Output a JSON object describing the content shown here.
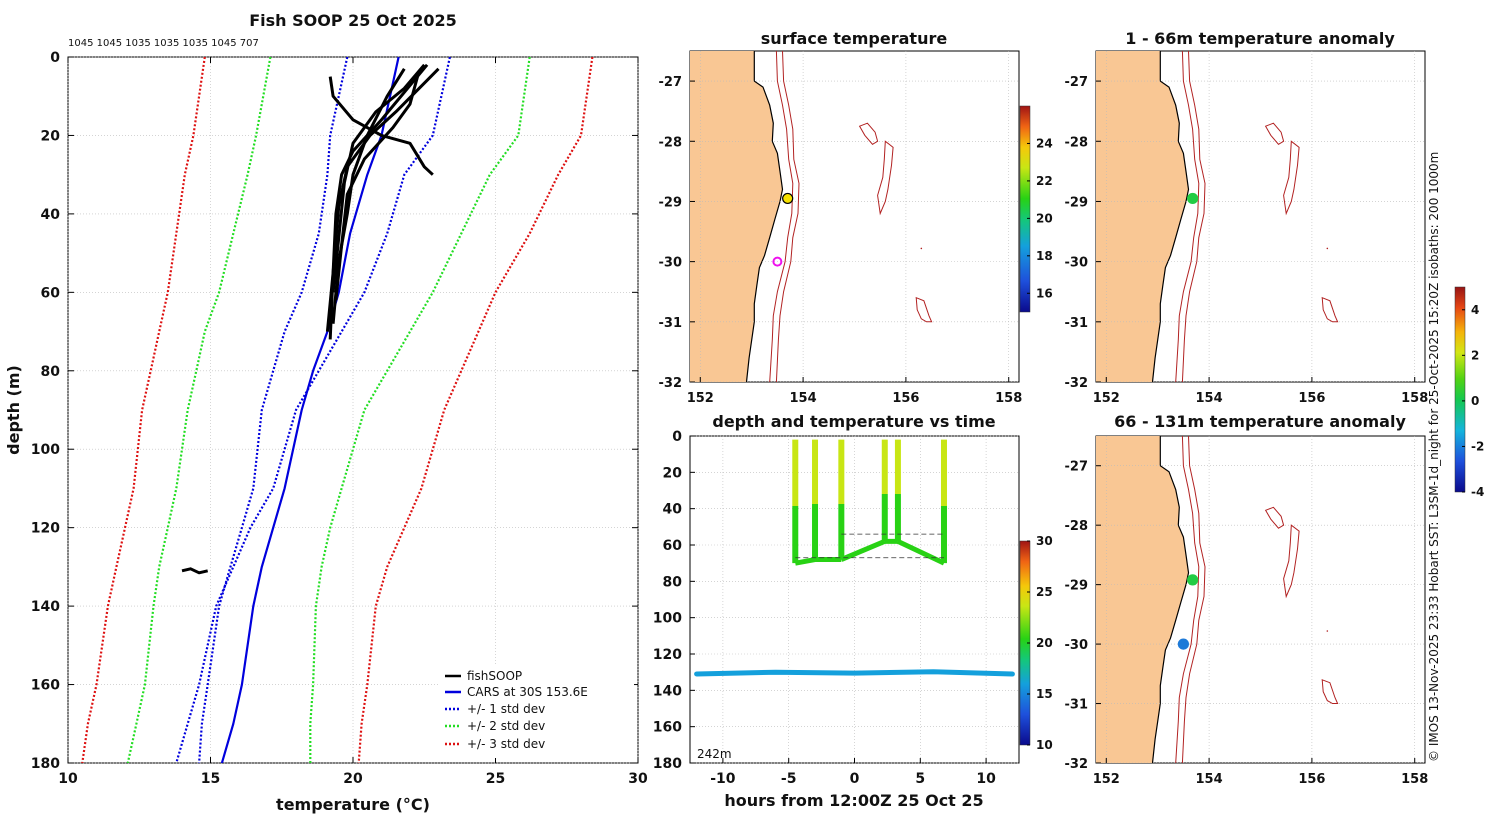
{
  "figure": {
    "title": "Fish SOOP 25 Oct 2025",
    "drop_depths": "1045 1045 1035 1035 1035 1045 707",
    "credit": "© IMOS 13-Nov-2025 23:33 Hobart SST: L3SM-1d_night for 25-Oct-2025 15:20Z isobaths: 200  1000m"
  },
  "colors": {
    "land": "#f9c794",
    "isobath": "#b22222",
    "fishsoop": "#000000",
    "cars": "#0000dd",
    "sd1": "#0000dd",
    "sd2": "#22dd22",
    "sd3": "#dd1111"
  },
  "chart_data": [
    {
      "id": "profile",
      "type": "line",
      "title": "Fish SOOP 25 Oct 2025",
      "xlabel": "temperature (°C)",
      "ylabel": "depth (m)",
      "xlim": [
        10,
        30
      ],
      "ylim": [
        0,
        180
      ],
      "xticks": [
        10,
        15,
        20,
        25,
        30
      ],
      "yticks": [
        0,
        20,
        40,
        60,
        80,
        100,
        120,
        140,
        160,
        180
      ],
      "grid": true,
      "legend_position": "bottom-right",
      "series": [
        {
          "name": "CARS at 30S 153.6E",
          "style": "cars",
          "x": [
            21.6,
            21.0,
            20.5,
            19.9,
            19.5,
            19.1,
            18.6,
            18.2,
            17.6,
            17.2,
            16.8,
            16.5,
            16.1,
            15.8,
            15.4
          ],
          "depth": [
            0,
            20,
            30,
            45,
            60,
            70,
            80,
            90,
            110,
            120,
            130,
            140,
            160,
            170,
            180
          ]
        },
        {
          "name": "+/- 1 std dev",
          "style": "sd1",
          "x": [
            23.4,
            22.8,
            21.8,
            21.2,
            20.4,
            19.6,
            18.8,
            18.0,
            17.2,
            16.4,
            15.8,
            15.2,
            14.6,
            14.2,
            13.8
          ],
          "depth": [
            0,
            20,
            30,
            45,
            60,
            70,
            80,
            90,
            110,
            120,
            130,
            140,
            160,
            170,
            180
          ]
        },
        {
          "name": "",
          "style": "sd1",
          "x": [
            19.8,
            19.2,
            19.1,
            18.8,
            18.2,
            17.6,
            17.2,
            16.8,
            16.5,
            16.1,
            15.7,
            15.3,
            14.9,
            14.7,
            14.6
          ],
          "depth": [
            0,
            20,
            30,
            45,
            60,
            70,
            80,
            90,
            110,
            120,
            130,
            140,
            160,
            170,
            180
          ]
        },
        {
          "name": "+/- 2 std dev",
          "style": "sd2",
          "x": [
            26.2,
            25.8,
            24.8,
            23.8,
            22.8,
            22.0,
            21.2,
            20.4,
            19.6,
            19.2,
            18.9,
            18.7,
            18.6,
            18.5,
            18.5
          ],
          "depth": [
            0,
            20,
            30,
            45,
            60,
            70,
            80,
            90,
            110,
            120,
            130,
            140,
            160,
            170,
            180
          ]
        },
        {
          "name": "",
          "style": "sd2",
          "x": [
            17.1,
            16.6,
            16.3,
            15.8,
            15.3,
            14.8,
            14.5,
            14.2,
            13.8,
            13.5,
            13.2,
            13.0,
            12.7,
            12.4,
            12.1
          ],
          "depth": [
            0,
            20,
            30,
            45,
            60,
            70,
            80,
            90,
            110,
            120,
            130,
            140,
            160,
            170,
            180
          ]
        },
        {
          "name": "+/- 3 std dev",
          "style": "sd3",
          "x": [
            28.4,
            28.0,
            27.2,
            26.2,
            25.0,
            24.4,
            23.8,
            23.2,
            22.4,
            21.8,
            21.2,
            20.8,
            20.5,
            20.3,
            20.2
          ],
          "depth": [
            0,
            20,
            30,
            45,
            60,
            70,
            80,
            90,
            110,
            120,
            130,
            140,
            160,
            170,
            180
          ]
        },
        {
          "name": "",
          "style": "sd3",
          "x": [
            14.8,
            14.4,
            14.1,
            13.8,
            13.5,
            13.2,
            12.9,
            12.6,
            12.3,
            12.0,
            11.7,
            11.4,
            11.0,
            10.7,
            10.5
          ],
          "depth": [
            0,
            20,
            30,
            45,
            60,
            70,
            80,
            90,
            110,
            120,
            130,
            140,
            160,
            170,
            180
          ]
        },
        {
          "name": "fishSOOP",
          "style": "fishsoop",
          "x": [
            22.6,
            21.0,
            20.0,
            19.6,
            19.4,
            19.3,
            19.2
          ],
          "depth": [
            2,
            16,
            24,
            30,
            40,
            55,
            72
          ]
        },
        {
          "name": "",
          "style": "fishsoop",
          "x": [
            23.0,
            21.5,
            20.6,
            19.8,
            19.5,
            19.3,
            19.1
          ],
          "depth": [
            3,
            14,
            20,
            28,
            38,
            55,
            70
          ]
        },
        {
          "name": "",
          "style": "fishsoop",
          "x": [
            22.3,
            22.0,
            21.4,
            20.4,
            19.8,
            19.6,
            19.4
          ],
          "depth": [
            4,
            12,
            18,
            26,
            35,
            48,
            62
          ]
        },
        {
          "name": "",
          "style": "fishsoop",
          "x": [
            19.2,
            19.3,
            20.0,
            21.0,
            22.0,
            22.5,
            22.8
          ],
          "depth": [
            5,
            10,
            16,
            20,
            22,
            28,
            30
          ]
        },
        {
          "name": "",
          "style": "fishsoop",
          "x": [
            22.5,
            21.8,
            20.8,
            20.0,
            19.7,
            19.5,
            19.3
          ],
          "depth": [
            2,
            8,
            14,
            22,
            32,
            46,
            60
          ]
        },
        {
          "name": "",
          "style": "fishsoop",
          "x": [
            21.8,
            21.2,
            20.5,
            20.0,
            19.8,
            19.5,
            19.3
          ],
          "depth": [
            3,
            10,
            20,
            30,
            40,
            52,
            68
          ]
        },
        {
          "name": "",
          "style": "fishsoop",
          "x": [
            14.0,
            14.3,
            14.6,
            14.9
          ],
          "depth": [
            131,
            130.5,
            131.5,
            131
          ]
        }
      ]
    },
    {
      "id": "timeseries",
      "type": "scatter",
      "title": "depth and temperature vs time",
      "xlabel": "hours from 12:00Z 25 Oct 25",
      "ylabel": "",
      "xlim": [
        -12.5,
        12.5
      ],
      "ylim": [
        0,
        180
      ],
      "xticks": [
        -10,
        -5,
        0,
        5,
        10
      ],
      "yticks": [
        0,
        20,
        40,
        60,
        80,
        100,
        120,
        140,
        160,
        180
      ],
      "annotation": "242m",
      "grid": true,
      "deep_trace": {
        "x": [
          -12,
          -6,
          0,
          6,
          12
        ],
        "depth": [
          131,
          130,
          130.5,
          129.8,
          131
        ],
        "temperature": 15
      },
      "shallow_casts": [
        {
          "x": -4.5,
          "bottom": 70,
          "temperature_top": 24,
          "temperature_bottom": 20
        },
        {
          "x": -3,
          "bottom": 68,
          "temperature_top": 24,
          "temperature_bottom": 20
        },
        {
          "x": -1,
          "bottom": 68,
          "temperature_top": 24,
          "temperature_bottom": 20
        },
        {
          "x": 2.3,
          "bottom": 58,
          "temperature_top": 23,
          "temperature_bottom": 20
        },
        {
          "x": 3.3,
          "bottom": 58,
          "temperature_top": 23,
          "temperature_bottom": 20
        },
        {
          "x": 6.8,
          "bottom": 70,
          "temperature_top": 23,
          "temperature_bottom": 20
        }
      ],
      "colorbar": {
        "min": 10,
        "max": 30,
        "ticks": [
          10,
          15,
          20,
          25,
          30
        ]
      }
    },
    {
      "id": "map_surface",
      "type": "scatter",
      "title": "surface temperature",
      "xlim": [
        151.8,
        158.2
      ],
      "ylim": [
        -32,
        -26.5
      ],
      "xticks": [
        152,
        154,
        156,
        158
      ],
      "yticks": [
        -27,
        -28,
        -29,
        -30,
        -31,
        -32
      ],
      "markers": [
        {
          "lon": 153.7,
          "lat": -28.95,
          "color": "#f6e100",
          "outline": "#000000"
        },
        {
          "lon": 153.5,
          "lat": -30.0,
          "color": "#ffffff",
          "outline": "#ee11ee"
        }
      ],
      "colorbar": {
        "min": 15,
        "max": 26,
        "ticks": [
          16,
          18,
          20,
          22,
          24
        ]
      }
    },
    {
      "id": "map_anomaly_1_66",
      "type": "scatter",
      "title": "1 - 66m temperature anomaly",
      "xlim": [
        151.8,
        158.2
      ],
      "ylim": [
        -32,
        -26.5
      ],
      "xticks": [
        152,
        154,
        156,
        158
      ],
      "yticks": [
        -27,
        -28,
        -29,
        -30,
        -31,
        -32
      ],
      "markers": [
        {
          "lon": 153.68,
          "lat": -28.95,
          "color": "#22cc44",
          "outline": "#22cc44"
        }
      ]
    },
    {
      "id": "map_anomaly_66_131",
      "type": "scatter",
      "title": "66 - 131m temperature anomaly",
      "xlim": [
        151.8,
        158.2
      ],
      "ylim": [
        -32,
        -26.5
      ],
      "xticks": [
        152,
        154,
        156,
        158
      ],
      "yticks": [
        -27,
        -28,
        -29,
        -30,
        -31,
        -32
      ],
      "markers": [
        {
          "lon": 153.68,
          "lat": -28.92,
          "color": "#22cc44",
          "outline": "#22cc44"
        },
        {
          "lon": 153.5,
          "lat": -30.0,
          "color": "#1e7ad8",
          "outline": "#1e7ad8"
        }
      ],
      "colorbar": {
        "min": -4,
        "max": 5,
        "ticks": [
          4,
          2,
          0,
          -2,
          -4
        ]
      }
    }
  ]
}
